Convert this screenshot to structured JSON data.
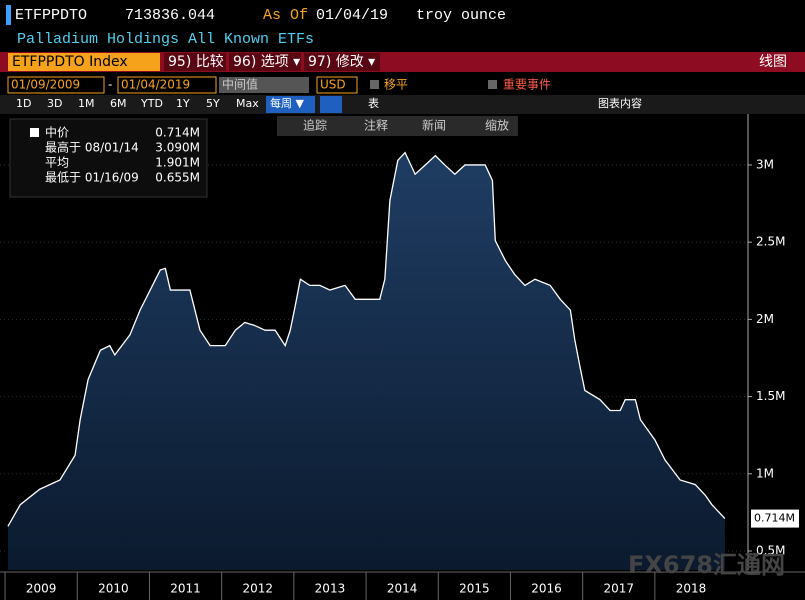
{
  "header": {
    "ticker": "ETFPPDTO",
    "value": "713836.044",
    "as_of_label": "As Of",
    "date": "01/04/19",
    "unit": "troy ounce",
    "description": "Palladium Holdings All Known ETFs"
  },
  "toolbar": {
    "security": "ETFPPDTO Index",
    "buttons": [
      "95) 比较",
      "96) 选项 ▾",
      "97) 修改 ▾"
    ],
    "right": "线图"
  },
  "controls": {
    "start": "01/09/2009",
    "separator": "-",
    "end": "01/04/2019",
    "mode": "中间值",
    "currency": "USD",
    "smooth": "移平",
    "events": "重要事件"
  },
  "ranges": [
    "1D",
    "3D",
    "1M",
    "6M",
    "YTD",
    "1Y",
    "5Y",
    "Max"
  ],
  "frequency": "每周 ▼",
  "table": "表",
  "chart_content": "图表内容",
  "tools": [
    "追踪",
    "注释",
    "新闻",
    "缩放"
  ],
  "watermark": "FX678汇通网",
  "chart_data": {
    "type": "area",
    "color": "#ffffff",
    "fill": "#1d3a5e",
    "legend": [
      {
        "label": "中价",
        "value": "0.714M"
      },
      {
        "label": "最高于 08/01/14",
        "value": "3.090M"
      },
      {
        "label": "平均",
        "value": "1.901M"
      },
      {
        "label": "最低于 01/16/09",
        "value": "0.655M"
      }
    ],
    "last_value_label": "0.714M",
    "x": [
      2009.04,
      2009.21,
      2009.48,
      2009.76,
      2009.97,
      2010.04,
      2010.15,
      2010.32,
      2010.45,
      2010.52,
      2010.73,
      2010.87,
      2011.01,
      2011.15,
      2011.22,
      2011.29,
      2011.42,
      2011.56,
      2011.7,
      2011.84,
      2012.05,
      2012.19,
      2012.32,
      2012.46,
      2012.6,
      2012.74,
      2012.88,
      2012.95,
      2013.02,
      2013.09,
      2013.22,
      2013.36,
      2013.5,
      2013.71,
      2013.85,
      2013.99,
      2014.19,
      2014.26,
      2014.33,
      2014.44,
      2014.54,
      2014.68,
      2014.82,
      2014.96,
      2015.09,
      2015.23,
      2015.37,
      2015.51,
      2015.65,
      2015.75,
      2015.79,
      2015.93,
      2016.06,
      2016.2,
      2016.34,
      2016.55,
      2016.69,
      2016.83,
      2016.89,
      2016.96,
      2017.03,
      2017.24,
      2017.38,
      2017.52,
      2017.59,
      2017.73,
      2017.8,
      2018.0,
      2018.14,
      2018.35,
      2018.56,
      2018.7,
      2018.79,
      2018.97
    ],
    "series": [
      {
        "name": "中价",
        "values": [
          0.66,
          0.8,
          0.9,
          0.96,
          1.12,
          1.35,
          1.61,
          1.8,
          1.83,
          1.77,
          1.9,
          2.06,
          2.19,
          2.32,
          2.33,
          2.19,
          2.19,
          2.19,
          1.93,
          1.83,
          1.83,
          1.93,
          1.98,
          1.96,
          1.93,
          1.93,
          1.83,
          1.93,
          2.09,
          2.26,
          2.22,
          2.22,
          2.19,
          2.22,
          2.13,
          2.13,
          2.13,
          2.26,
          2.77,
          3.03,
          3.08,
          2.94,
          3.0,
          3.06,
          3.0,
          2.94,
          3.0,
          3.0,
          3.0,
          2.9,
          2.51,
          2.38,
          2.29,
          2.22,
          2.26,
          2.22,
          2.13,
          2.06,
          1.87,
          1.7,
          1.54,
          1.48,
          1.41,
          1.41,
          1.48,
          1.48,
          1.35,
          1.22,
          1.09,
          0.96,
          0.93,
          0.86,
          0.8,
          0.71
        ]
      }
    ],
    "xlim": [
      2008.93,
      2019.29
    ],
    "xticks": [
      2009,
      2010,
      2011,
      2012,
      2013,
      2014,
      2015,
      2016,
      2017,
      2018
    ],
    "ylim": [
      0.377,
      3.33
    ],
    "yticks": [
      {
        "value": 0.5,
        "label": "0.5M"
      },
      {
        "value": 1,
        "label": "1M"
      },
      {
        "value": 1.5,
        "label": "1.5M"
      },
      {
        "value": 2,
        "label": "2M"
      },
      {
        "value": 2.5,
        "label": "2.5M"
      },
      {
        "value": 3,
        "label": "3M"
      }
    ],
    "grid": true
  }
}
